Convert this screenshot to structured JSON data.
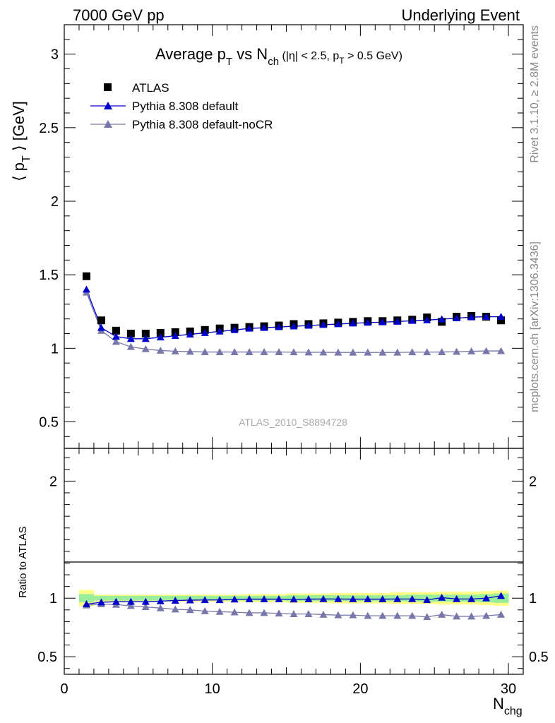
{
  "header": {
    "left": "7000 GeV pp",
    "right": "Underlying Event"
  },
  "side_labels": {
    "rivet": "Rivet 3.1.10, ≥ 2.8M events",
    "mcplots": "mcplots.cern.ch [arXiv:1306.3436]"
  },
  "analysis_id": "ATLAS_2010_S8894728",
  "colors": {
    "data": "#000000",
    "default": "#0000cc",
    "nocr": "#7777aa",
    "band_inner": "#99ee99",
    "band_outer": "#ffff88"
  },
  "chart_data": [
    {
      "type": "scatter",
      "title": "Average pT vs Nch (|η| < 2.5, pT > 0.5 GeV)",
      "ylabel": "⟨ pT ⟩ [GeV]",
      "xlim": [
        0,
        31
      ],
      "ylim": [
        0.32,
        3.2
      ],
      "yticks": [
        0.5,
        1,
        1.5,
        2,
        2.5,
        3
      ],
      "x": [
        1.5,
        2.5,
        3.5,
        4.5,
        5.5,
        6.5,
        7.5,
        8.5,
        9.5,
        10.5,
        11.5,
        12.5,
        13.5,
        14.5,
        15.5,
        16.5,
        17.5,
        18.5,
        19.5,
        20.5,
        21.5,
        22.5,
        23.5,
        24.5,
        25.5,
        26.5,
        27.5,
        28.5,
        29.5
      ],
      "legend": [
        "ATLAS",
        "Pythia 8.308 default",
        "Pythia 8.308 default-noCR"
      ],
      "series": [
        {
          "name": "ATLAS",
          "values": [
            1.49,
            1.19,
            1.12,
            1.1,
            1.1,
            1.105,
            1.11,
            1.115,
            1.125,
            1.135,
            1.14,
            1.145,
            1.15,
            1.155,
            1.165,
            1.165,
            1.17,
            1.175,
            1.18,
            1.185,
            1.185,
            1.19,
            1.195,
            1.21,
            1.18,
            1.215,
            1.22,
            1.215,
            1.19
          ]
        },
        {
          "name": "Pythia 8.308 default",
          "values": [
            1.4,
            1.14,
            1.08,
            1.065,
            1.065,
            1.075,
            1.085,
            1.095,
            1.105,
            1.115,
            1.125,
            1.135,
            1.14,
            1.145,
            1.15,
            1.155,
            1.16,
            1.165,
            1.17,
            1.175,
            1.178,
            1.182,
            1.188,
            1.192,
            1.198,
            1.205,
            1.212,
            1.215,
            1.215
          ]
        },
        {
          "name": "Pythia 8.308 default-noCR",
          "values": [
            1.38,
            1.12,
            1.045,
            1.01,
            0.995,
            0.985,
            0.98,
            0.978,
            0.975,
            0.975,
            0.975,
            0.975,
            0.975,
            0.975,
            0.974,
            0.973,
            0.973,
            0.972,
            0.972,
            0.972,
            0.972,
            0.972,
            0.974,
            0.974,
            0.975,
            0.977,
            0.98,
            0.982,
            0.982
          ]
        }
      ]
    },
    {
      "type": "scatter",
      "ylabel": "Ratio to ATLAS",
      "xlabel": "Nchg",
      "xlim": [
        0,
        31
      ],
      "ylim": [
        0.35,
        2.28
      ],
      "yticks": [
        0.5,
        1,
        2
      ],
      "xticks": [
        0,
        10,
        20,
        30
      ],
      "x": [
        1.5,
        2.5,
        3.5,
        4.5,
        5.5,
        6.5,
        7.5,
        8.5,
        9.5,
        10.5,
        11.5,
        12.5,
        13.5,
        14.5,
        15.5,
        16.5,
        17.5,
        18.5,
        19.5,
        20.5,
        21.5,
        22.5,
        23.5,
        24.5,
        25.5,
        26.5,
        27.5,
        28.5,
        29.5
      ],
      "band_inner": [
        0.035,
        0.02,
        0.02,
        0.02,
        0.02,
        0.02,
        0.02,
        0.02,
        0.02,
        0.02,
        0.02,
        0.02,
        0.02,
        0.02,
        0.025,
        0.025,
        0.025,
        0.025,
        0.025,
        0.025,
        0.025,
        0.025,
        0.03,
        0.03,
        0.03,
        0.03,
        0.03,
        0.035,
        0.04
      ],
      "band_outer": [
        0.07,
        0.03,
        0.03,
        0.03,
        0.03,
        0.03,
        0.03,
        0.03,
        0.03,
        0.03,
        0.03,
        0.035,
        0.035,
        0.035,
        0.04,
        0.04,
        0.04,
        0.045,
        0.045,
        0.045,
        0.045,
        0.05,
        0.05,
        0.05,
        0.055,
        0.055,
        0.055,
        0.06,
        0.065
      ],
      "series": [
        {
          "name": "Pythia 8.308 default",
          "values": [
            0.95,
            0.965,
            0.97,
            0.97,
            0.97,
            0.975,
            0.98,
            0.983,
            0.985,
            0.985,
            0.99,
            0.992,
            0.992,
            0.992,
            0.99,
            0.992,
            0.993,
            0.993,
            0.992,
            0.992,
            0.992,
            0.993,
            0.993,
            0.985,
            1.005,
            0.993,
            0.993,
            1.0,
            1.02
          ]
        },
        {
          "name": "Pythia 8.308 default-noCR",
          "values": [
            0.94,
            0.95,
            0.945,
            0.935,
            0.925,
            0.915,
            0.905,
            0.9,
            0.89,
            0.885,
            0.88,
            0.875,
            0.875,
            0.87,
            0.865,
            0.865,
            0.86,
            0.855,
            0.855,
            0.85,
            0.85,
            0.85,
            0.85,
            0.84,
            0.86,
            0.845,
            0.845,
            0.85,
            0.86
          ]
        }
      ]
    }
  ]
}
